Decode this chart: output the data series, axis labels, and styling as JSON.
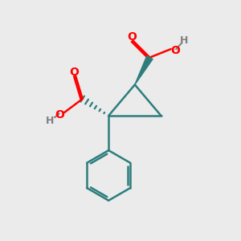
{
  "background_color": "#ebebeb",
  "bond_color": "#2d7d7d",
  "oxygen_color": "#ff0000",
  "hydrogen_color": "#808080",
  "bond_width": 1.8,
  "figsize": [
    3.0,
    3.0
  ],
  "dpi": 100,
  "xlim": [
    0,
    10
  ],
  "ylim": [
    0,
    10
  ]
}
